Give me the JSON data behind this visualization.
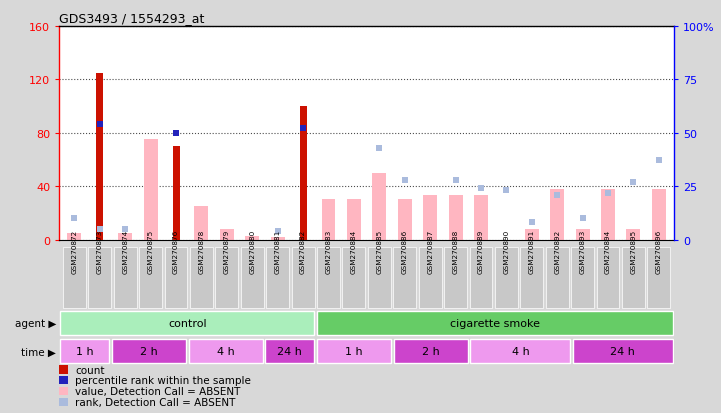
{
  "title": "GDS3493 / 1554293_at",
  "samples": [
    "GSM270872",
    "GSM270873",
    "GSM270874",
    "GSM270875",
    "GSM270876",
    "GSM270878",
    "GSM270879",
    "GSM270880",
    "GSM270881",
    "GSM270882",
    "GSM270883",
    "GSM270884",
    "GSM270885",
    "GSM270886",
    "GSM270887",
    "GSM270888",
    "GSM270889",
    "GSM270890",
    "GSM270891",
    "GSM270892",
    "GSM270893",
    "GSM270894",
    "GSM270895",
    "GSM270896"
  ],
  "count": [
    0,
    125,
    0,
    0,
    70,
    0,
    0,
    0,
    0,
    100,
    0,
    0,
    0,
    0,
    0,
    0,
    0,
    0,
    0,
    0,
    0,
    0,
    0,
    0
  ],
  "percentile_rank": [
    null,
    54,
    null,
    null,
    50,
    null,
    null,
    null,
    null,
    52,
    null,
    null,
    null,
    null,
    null,
    null,
    null,
    null,
    null,
    null,
    null,
    null,
    null,
    null
  ],
  "absent_value": [
    5,
    0,
    5,
    75,
    0,
    25,
    8,
    3,
    2,
    0,
    30,
    30,
    50,
    30,
    33,
    33,
    33,
    0,
    8,
    38,
    8,
    38,
    8,
    38
  ],
  "absent_rank_pct": [
    10,
    5,
    5,
    0,
    0,
    0,
    0,
    0,
    4,
    0,
    0,
    0,
    43,
    28,
    0,
    28,
    24,
    23,
    8,
    21,
    10,
    22,
    27,
    37
  ],
  "ylim_left": [
    0,
    160
  ],
  "ylim_right": [
    0,
    100
  ],
  "yticks_left": [
    0,
    40,
    80,
    120,
    160
  ],
  "yticks_right": [
    0,
    25,
    50,
    75,
    100
  ],
  "ytick_labels_left": [
    "0",
    "40",
    "80",
    "120",
    "160"
  ],
  "ytick_labels_right": [
    "0",
    "25",
    "50",
    "75",
    "100%"
  ],
  "agent_row": [
    {
      "label": "control",
      "start": 0,
      "end": 10
    },
    {
      "label": "cigarette smoke",
      "start": 10,
      "end": 24
    }
  ],
  "time_row": [
    {
      "label": "1 h",
      "start": 0,
      "end": 2,
      "alt": 0
    },
    {
      "label": "2 h",
      "start": 2,
      "end": 5,
      "alt": 1
    },
    {
      "label": "4 h",
      "start": 5,
      "end": 8,
      "alt": 0
    },
    {
      "label": "24 h",
      "start": 8,
      "end": 10,
      "alt": 1
    },
    {
      "label": "1 h",
      "start": 10,
      "end": 13,
      "alt": 0
    },
    {
      "label": "2 h",
      "start": 13,
      "end": 16,
      "alt": 1
    },
    {
      "label": "4 h",
      "start": 16,
      "end": 20,
      "alt": 0
    },
    {
      "label": "24 h",
      "start": 20,
      "end": 24,
      "alt": 1
    }
  ],
  "bg_color": "#D8D8D8",
  "plot_bg": "#FFFFFF",
  "red_bar_color": "#CC1100",
  "blue_marker_color": "#2222BB",
  "pink_bar_color": "#FFB6C1",
  "light_blue_color": "#AABBDD",
  "agent_color_control": "#AAEEBB",
  "agent_color_smoke": "#66CC66",
  "time_color_light": "#EE99EE",
  "time_color_dark": "#CC44CC",
  "legend_items": [
    {
      "color": "#CC1100",
      "label": "count"
    },
    {
      "color": "#2222BB",
      "label": "percentile rank within the sample"
    },
    {
      "color": "#FFB6C1",
      "label": "value, Detection Call = ABSENT"
    },
    {
      "color": "#AABBDD",
      "label": "rank, Detection Call = ABSENT"
    }
  ]
}
